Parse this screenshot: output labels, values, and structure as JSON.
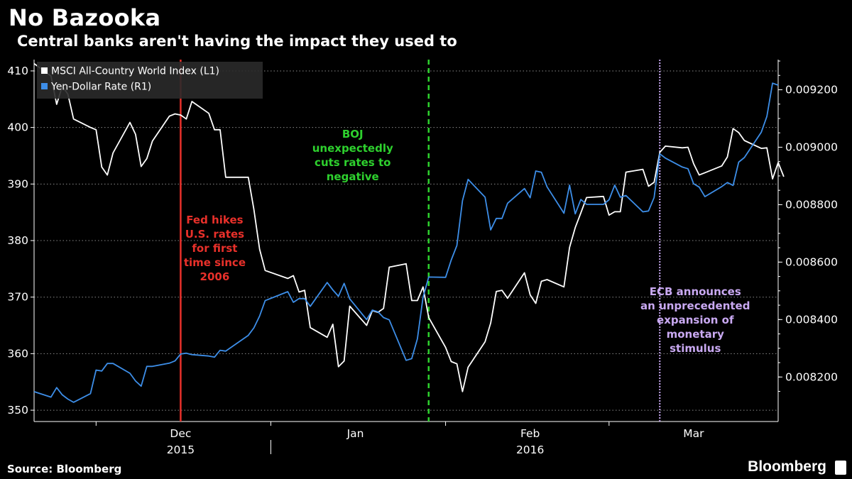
{
  "header": {
    "title": "No Bazooka",
    "subtitle": "Central banks aren't having the impact they used to"
  },
  "footer": {
    "source": "Source: Bloomberg",
    "brand": "Bloomberg"
  },
  "colors": {
    "background": "#000000",
    "msci": "#ffffff",
    "yen": "#3d8ee8",
    "fed": "#e8302a",
    "boj": "#2ed12e",
    "ecb": "#c9a9f2",
    "grid": "#8a8a8a"
  },
  "chart_data": {
    "type": "line",
    "x_type": "date",
    "xlim": [
      "2015-11-20",
      "2016-03-31"
    ],
    "x_ticks": [
      {
        "label": "Dec",
        "date": "2015-12-01"
      },
      {
        "label": "Jan",
        "date": "2016-01-01"
      },
      {
        "label": "Feb",
        "date": "2016-02-01"
      },
      {
        "label": "Mar",
        "date": "2016-03-01"
      }
    ],
    "year_labels": [
      {
        "label": "2015",
        "date": "2015-12-01"
      },
      {
        "label": "2016",
        "date": "2016-02-01"
      }
    ],
    "grid": true,
    "legend_position": "top-left",
    "y_left": {
      "ylim": [
        348,
        412
      ],
      "ticks": [
        350,
        360,
        370,
        380,
        390,
        400,
        410
      ]
    },
    "y_right": {
      "ylim": [
        0.008045,
        0.009305
      ],
      "ticks": [
        "0.008200",
        "0.008400",
        "0.008600",
        "0.008800",
        "0.009000",
        "0.009200"
      ]
    },
    "series": [
      {
        "name": "MSCI All-Country World Index (L1)",
        "axis": "left",
        "color": "#ffffff",
        "points": [
          [
            "2015-11-20",
            411.3
          ],
          [
            "2015-11-23",
            409.1
          ],
          [
            "2015-11-24",
            404.1
          ],
          [
            "2015-11-25",
            407.3
          ],
          [
            "2015-11-26",
            405.9
          ],
          [
            "2015-11-27",
            401.5
          ],
          [
            "2015-11-30",
            400.0
          ],
          [
            "2015-12-01",
            399.6
          ],
          [
            "2015-12-02",
            393.0
          ],
          [
            "2015-12-03",
            391.6
          ],
          [
            "2015-12-04",
            395.5
          ],
          [
            "2015-12-07",
            400.9
          ],
          [
            "2015-12-08",
            398.8
          ],
          [
            "2015-12-09",
            393.1
          ],
          [
            "2015-12-10",
            394.5
          ],
          [
            "2015-12-11",
            397.6
          ],
          [
            "2015-12-14",
            402.0
          ],
          [
            "2015-12-15",
            402.4
          ],
          [
            "2015-12-16",
            402.2
          ],
          [
            "2015-12-17",
            401.5
          ],
          [
            "2015-12-18",
            404.6
          ],
          [
            "2015-12-21",
            402.5
          ],
          [
            "2015-12-22",
            399.6
          ],
          [
            "2015-12-23",
            399.6
          ],
          [
            "2015-12-24",
            391.2
          ],
          [
            "2015-12-28",
            391.2
          ],
          [
            "2015-12-29",
            385.5
          ],
          [
            "2015-12-30",
            378.5
          ],
          [
            "2015-12-31",
            374.7
          ],
          [
            "2016-01-04",
            373.3
          ],
          [
            "2016-01-05",
            373.8
          ],
          [
            "2016-01-06",
            370.9
          ],
          [
            "2016-01-07",
            371.2
          ],
          [
            "2016-01-08",
            364.6
          ],
          [
            "2016-01-11",
            362.9
          ],
          [
            "2016-01-12",
            365.2
          ],
          [
            "2016-01-13",
            357.7
          ],
          [
            "2016-01-14",
            358.7
          ],
          [
            "2016-01-15",
            368.4
          ],
          [
            "2016-01-18",
            365.0
          ],
          [
            "2016-01-19",
            367.6
          ],
          [
            "2016-01-20",
            367.3
          ],
          [
            "2016-01-21",
            368.0
          ],
          [
            "2016-01-22",
            375.3
          ],
          [
            "2016-01-25",
            375.9
          ],
          [
            "2016-01-26",
            369.4
          ],
          [
            "2016-01-27",
            369.4
          ],
          [
            "2016-01-28",
            371.8
          ],
          [
            "2016-01-29",
            366.4
          ],
          [
            "2016-02-01",
            361.1
          ],
          [
            "2016-02-02",
            358.6
          ],
          [
            "2016-02-03",
            358.2
          ],
          [
            "2016-02-04",
            353.3
          ],
          [
            "2016-02-05",
            357.6
          ],
          [
            "2016-02-08",
            362.1
          ],
          [
            "2016-02-09",
            365.4
          ],
          [
            "2016-02-10",
            371.0
          ],
          [
            "2016-02-11",
            371.2
          ],
          [
            "2016-02-12",
            369.8
          ],
          [
            "2016-02-15",
            374.3
          ],
          [
            "2016-02-16",
            370.4
          ],
          [
            "2016-02-17",
            368.9
          ],
          [
            "2016-02-18",
            372.8
          ],
          [
            "2016-02-19",
            373.1
          ],
          [
            "2016-02-22",
            371.8
          ],
          [
            "2016-02-23",
            378.8
          ],
          [
            "2016-02-24",
            382.3
          ],
          [
            "2016-02-25",
            384.9
          ],
          [
            "2016-02-26",
            387.6
          ],
          [
            "2016-02-29",
            387.8
          ],
          [
            "2016-03-01",
            384.5
          ],
          [
            "2016-03-02",
            385.1
          ],
          [
            "2016-03-03",
            385.1
          ],
          [
            "2016-03-04",
            392.1
          ],
          [
            "2016-03-07",
            392.6
          ],
          [
            "2016-03-08",
            389.6
          ],
          [
            "2016-03-09",
            390.3
          ],
          [
            "2016-03-10",
            395.6
          ],
          [
            "2016-03-11",
            396.7
          ],
          [
            "2016-03-14",
            396.4
          ],
          [
            "2016-03-15",
            396.5
          ],
          [
            "2016-03-16",
            393.6
          ],
          [
            "2016-03-17",
            391.6
          ],
          [
            "2016-03-18",
            392.0
          ],
          [
            "2016-03-21",
            393.2
          ],
          [
            "2016-03-22",
            394.8
          ],
          [
            "2016-03-23",
            399.8
          ],
          [
            "2016-03-24",
            399.1
          ],
          [
            "2016-03-25",
            397.7
          ],
          [
            "2016-03-28",
            396.3
          ],
          [
            "2016-03-29",
            396.4
          ],
          [
            "2016-03-30",
            390.9
          ],
          [
            "2016-03-31",
            393.8
          ],
          [
            "2016-04-01",
            391.3
          ]
        ]
      },
      {
        "name": "Yen-Dollar Rate (R1)",
        "axis": "right",
        "color": "#3d8ee8",
        "points": [
          [
            "2015-11-20",
            0.008149
          ],
          [
            "2015-11-23",
            0.00813
          ],
          [
            "2015-11-24",
            0.008163
          ],
          [
            "2015-11-25",
            0.008138
          ],
          [
            "2015-11-26",
            0.008123
          ],
          [
            "2015-11-27",
            0.008112
          ],
          [
            "2015-11-30",
            0.008142
          ],
          [
            "2015-12-01",
            0.008224
          ],
          [
            "2015-12-02",
            0.008221
          ],
          [
            "2015-12-03",
            0.008247
          ],
          [
            "2015-12-04",
            0.008247
          ],
          [
            "2015-12-07",
            0.008213
          ],
          [
            "2015-12-08",
            0.008186
          ],
          [
            "2015-12-09",
            0.008168
          ],
          [
            "2015-12-10",
            0.008237
          ],
          [
            "2015-12-11",
            0.008237
          ],
          [
            "2015-12-14",
            0.008248
          ],
          [
            "2015-12-15",
            0.008256
          ],
          [
            "2015-12-16",
            0.00828
          ],
          [
            "2015-12-17",
            0.008283
          ],
          [
            "2015-12-18",
            0.008278
          ],
          [
            "2015-12-21",
            0.008273
          ],
          [
            "2015-12-22",
            0.008269
          ],
          [
            "2015-12-23",
            0.008293
          ],
          [
            "2015-12-24",
            0.00829
          ],
          [
            "2015-12-28",
            0.008345
          ],
          [
            "2015-12-29",
            0.008371
          ],
          [
            "2015-12-30",
            0.008412
          ],
          [
            "2015-12-31",
            0.008466
          ],
          [
            "2016-01-04",
            0.008497
          ],
          [
            "2016-01-05",
            0.00846
          ],
          [
            "2016-01-06",
            0.008473
          ],
          [
            "2016-01-07",
            0.008473
          ],
          [
            "2016-01-08",
            0.008446
          ],
          [
            "2016-01-11",
            0.008529
          ],
          [
            "2016-01-12",
            0.008503
          ],
          [
            "2016-01-13",
            0.008481
          ],
          [
            "2016-01-14",
            0.008526
          ],
          [
            "2016-01-15",
            0.008472
          ],
          [
            "2016-01-18",
            0.0084
          ],
          [
            "2016-01-19",
            0.008433
          ],
          [
            "2016-01-20",
            0.008427
          ],
          [
            "2016-01-21",
            0.008407
          ],
          [
            "2016-01-22",
            0.008399
          ],
          [
            "2016-01-25",
            0.008258
          ],
          [
            "2016-01-26",
            0.008264
          ],
          [
            "2016-01-27",
            0.008333
          ],
          [
            "2016-01-28",
            0.008477
          ],
          [
            "2016-01-29",
            0.008548
          ],
          [
            "2016-02-01",
            0.008547
          ],
          [
            "2016-02-02",
            0.008607
          ],
          [
            "2016-02-03",
            0.008658
          ],
          [
            "2016-02-04",
            0.008814
          ],
          [
            "2016-02-05",
            0.008888
          ],
          [
            "2016-02-08",
            0.008826
          ],
          [
            "2016-02-09",
            0.008712
          ],
          [
            "2016-02-10",
            0.008752
          ],
          [
            "2016-02-11",
            0.008752
          ],
          [
            "2016-02-12",
            0.008805
          ],
          [
            "2016-02-15",
            0.008856
          ],
          [
            "2016-02-16",
            0.008824
          ],
          [
            "2016-02-17",
            0.008917
          ],
          [
            "2016-02-18",
            0.008913
          ],
          [
            "2016-02-19",
            0.008862
          ],
          [
            "2016-02-22",
            0.00877
          ],
          [
            "2016-02-23",
            0.008868
          ],
          [
            "2016-02-24",
            0.008768
          ],
          [
            "2016-02-25",
            0.008818
          ],
          [
            "2016-02-26",
            0.008801
          ],
          [
            "2016-02-29",
            0.008801
          ],
          [
            "2016-03-01",
            0.008817
          ],
          [
            "2016-03-02",
            0.008868
          ],
          [
            "2016-03-03",
            0.008826
          ],
          [
            "2016-03-04",
            0.008832
          ],
          [
            "2016-03-07",
            0.008775
          ],
          [
            "2016-03-08",
            0.008778
          ],
          [
            "2016-03-09",
            0.008825
          ],
          [
            "2016-03-10",
            0.008977
          ],
          [
            "2016-03-11",
            0.008962
          ],
          [
            "2016-03-14",
            0.008931
          ],
          [
            "2016-03-15",
            0.008925
          ],
          [
            "2016-03-16",
            0.008873
          ],
          [
            "2016-03-17",
            0.008861
          ],
          [
            "2016-03-18",
            0.008828
          ],
          [
            "2016-03-21",
            0.008863
          ],
          [
            "2016-03-22",
            0.008877
          ],
          [
            "2016-03-23",
            0.008867
          ],
          [
            "2016-03-24",
            0.008948
          ],
          [
            "2016-03-25",
            0.008964
          ],
          [
            "2016-03-28",
            0.009052
          ],
          [
            "2016-03-29",
            0.009107
          ],
          [
            "2016-03-30",
            0.009223
          ],
          [
            "2016-03-31",
            0.009216
          ]
        ]
      }
    ],
    "events": [
      {
        "date": "2015-12-16",
        "label": "Fed hikes U.S. rates for first time since 2006",
        "lines": [
          "Fed hikes",
          "U.S. rates",
          "for first",
          "time since",
          "2006"
        ],
        "color": "#e8302a",
        "style": "solid"
      },
      {
        "date": "2016-01-29",
        "label": "BOJ unexpectedly cuts rates to negative",
        "lines": [
          "BOJ",
          "unexpectedly",
          "cuts rates to",
          "negative"
        ],
        "color": "#2ed12e",
        "style": "dashed"
      },
      {
        "date": "2016-03-10",
        "label": "ECB announces an unprecedented expansion of monetary stimulus",
        "lines": [
          "ECB announces",
          "an unprecedented",
          "expansion of",
          "monetary",
          "stimulus"
        ],
        "color": "#c9a9f2",
        "style": "dotted"
      }
    ]
  }
}
